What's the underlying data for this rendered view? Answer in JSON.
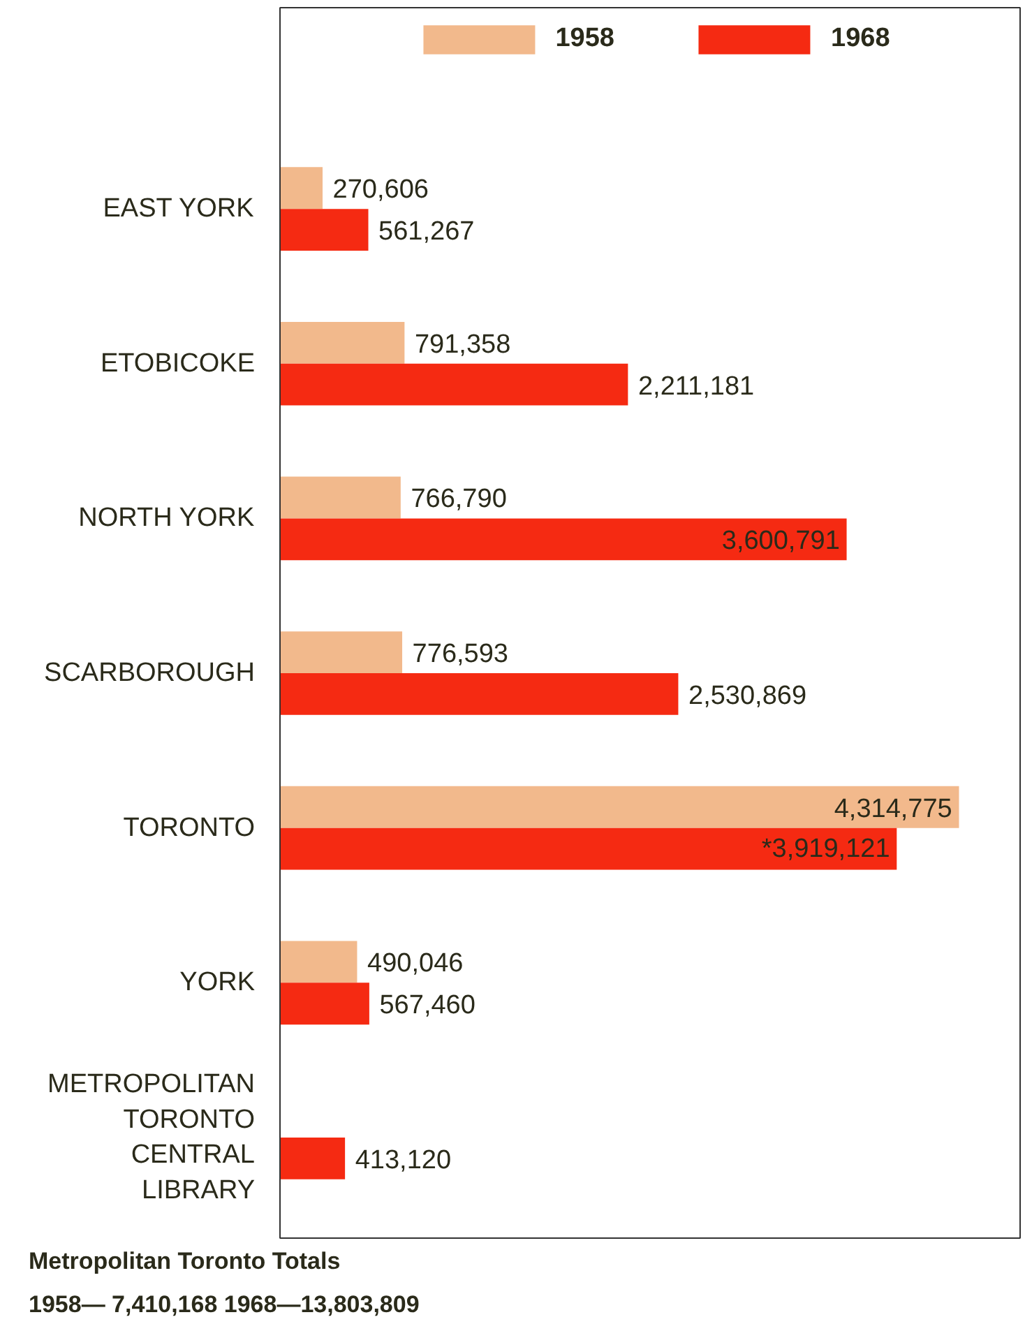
{
  "chart_data": {
    "type": "bar",
    "orientation": "horizontal",
    "categories": [
      "EAST YORK",
      "ETOBICOKE",
      "NORTH YORK",
      "SCARBOROUGH",
      "TORONTO",
      "YORK",
      "METROPOLITAN\nTORONTO\nCENTRAL\nLIBRARY"
    ],
    "series": [
      {
        "name": "1958",
        "color": "#f2b98c",
        "values": [
          270606,
          791358,
          766790,
          776593,
          4314775,
          490046,
          null
        ],
        "value_labels": [
          "270,606",
          "791,358",
          "766,790",
          "776,593",
          "4,314,775",
          "490,046",
          null
        ]
      },
      {
        "name": "1968",
        "color": "#f52a12",
        "values": [
          561267,
          2211181,
          3600791,
          2530869,
          3919121,
          567460,
          413120
        ],
        "value_labels": [
          "561,267",
          "2,211,181",
          "3,600,791",
          "2,530,869",
          "*3,919,121",
          "567,460",
          "413,120"
        ]
      }
    ],
    "legend": "top",
    "grid": false,
    "tick_labels": "y",
    "annotations": [
      "Metropolitan Toronto Totals",
      "1958— 7,410,168   1968—13,803,809"
    ]
  }
}
